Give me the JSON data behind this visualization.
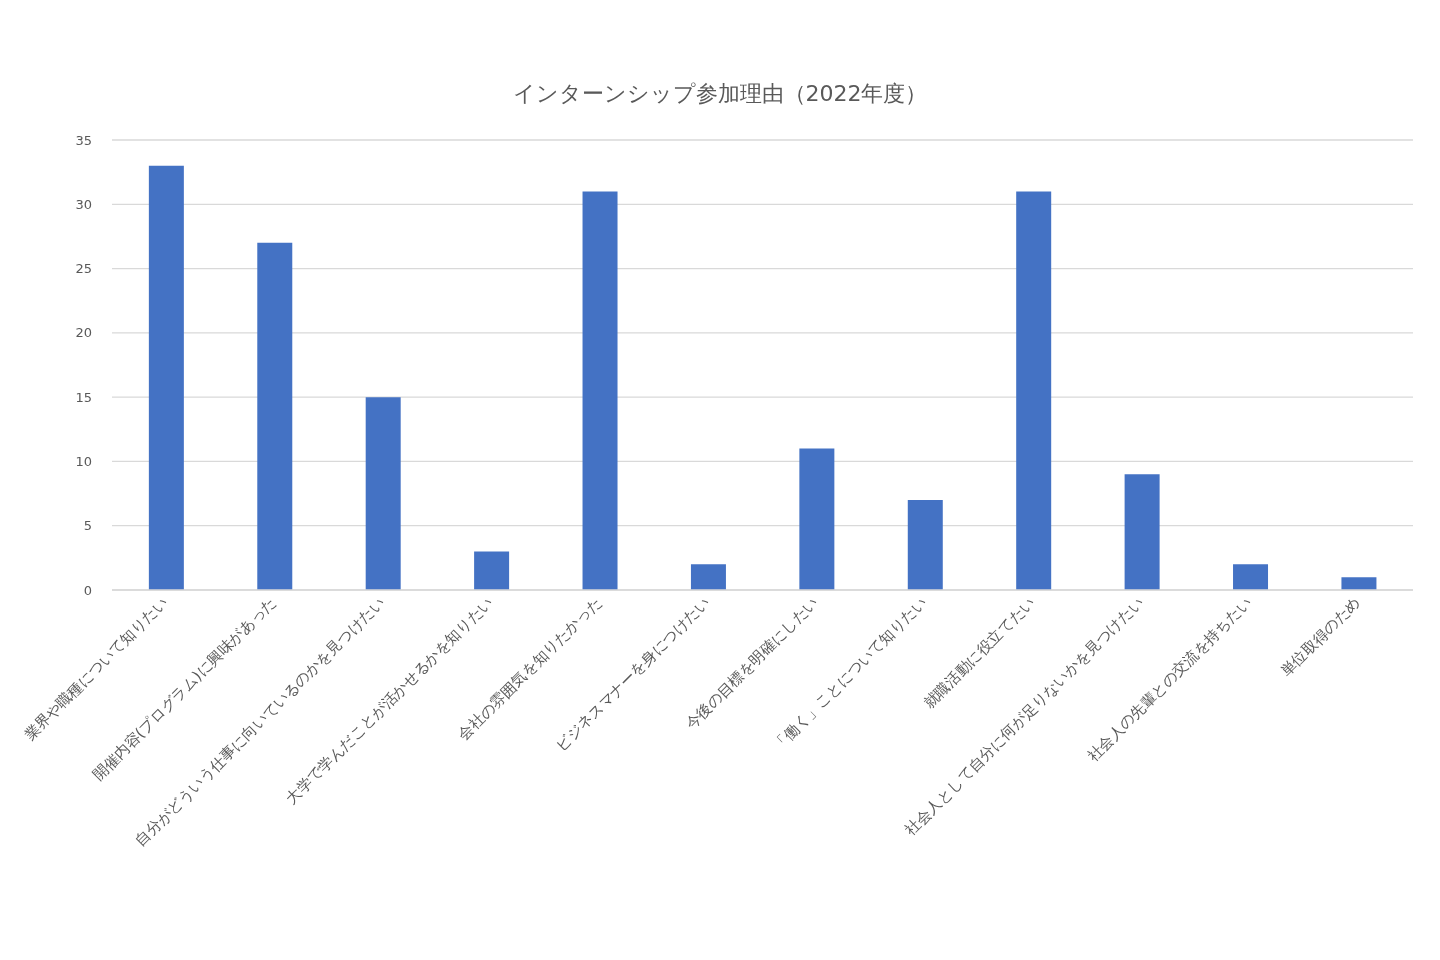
{
  "chart_data": {
    "type": "bar",
    "title": "インターンシップ参加理由（2022年度）",
    "categories": [
      "業界や職種について知りたい",
      "開催内容(プログラム)に興味があった",
      "自分がどういう仕事に向いているのかを見つけたい",
      "大学で学んだことが活かせるかを知りたい",
      "会社の雰囲気を知りたかった",
      "ビジネスマナーを身につけたい",
      "今後の目標を明確にしたい",
      "「働く」ことについて知りたい",
      "就職活動に役立てたい",
      "社会人として自分に何が足りないかを見つけたい",
      "社会人の先輩との交流を持ちたい",
      "単位取得のため"
    ],
    "values": [
      33,
      27,
      15,
      3,
      31,
      2,
      11,
      7,
      31,
      9,
      2,
      1
    ],
    "color": "#4472c4",
    "ylim": [
      0,
      35
    ],
    "yticks": [
      0,
      5,
      10,
      15,
      20,
      25,
      30,
      35
    ],
    "grid": "y"
  }
}
